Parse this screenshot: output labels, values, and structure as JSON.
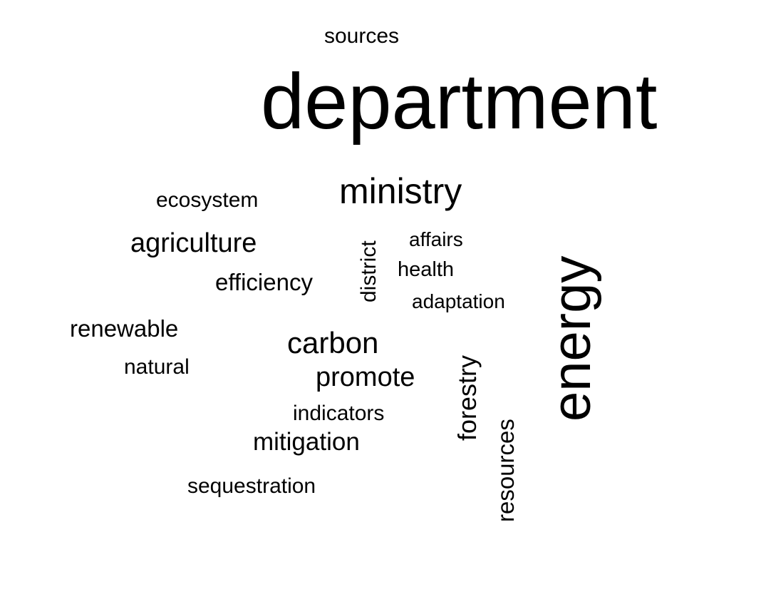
{
  "colors": {
    "background": "#ffffff",
    "text": "#000000"
  },
  "words": [
    {
      "text": "sources",
      "orientation": "horizontal"
    },
    {
      "text": "department",
      "orientation": "horizontal"
    },
    {
      "text": "ministry",
      "orientation": "horizontal"
    },
    {
      "text": "ecosystem",
      "orientation": "horizontal"
    },
    {
      "text": "agriculture",
      "orientation": "horizontal"
    },
    {
      "text": "district",
      "orientation": "vertical"
    },
    {
      "text": "affairs",
      "orientation": "horizontal"
    },
    {
      "text": "health",
      "orientation": "horizontal"
    },
    {
      "text": "efficiency",
      "orientation": "horizontal"
    },
    {
      "text": "adaptation",
      "orientation": "horizontal"
    },
    {
      "text": "energy",
      "orientation": "vertical"
    },
    {
      "text": "renewable",
      "orientation": "horizontal"
    },
    {
      "text": "carbon",
      "orientation": "horizontal"
    },
    {
      "text": "natural",
      "orientation": "horizontal"
    },
    {
      "text": "promote",
      "orientation": "horizontal"
    },
    {
      "text": "forestry",
      "orientation": "vertical"
    },
    {
      "text": "indicators",
      "orientation": "horizontal"
    },
    {
      "text": "resources",
      "orientation": "vertical"
    },
    {
      "text": "mitigation",
      "orientation": "horizontal"
    },
    {
      "text": "sequestration",
      "orientation": "horizontal"
    }
  ]
}
